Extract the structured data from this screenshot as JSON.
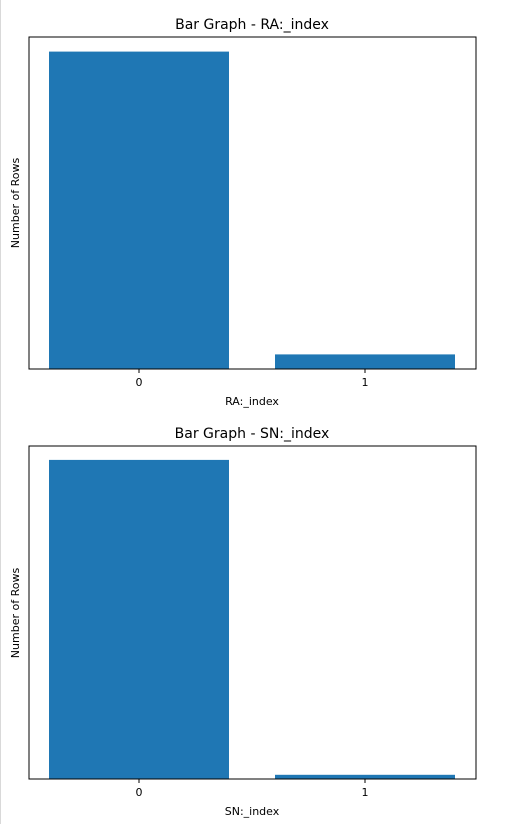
{
  "chart_data": [
    {
      "type": "bar",
      "title": "Bar Graph - RA:_index",
      "xlabel": "RA:_index",
      "ylabel": "Number of Rows",
      "categories": [
        "0",
        "1"
      ],
      "values": [
        0.956,
        0.044
      ],
      "ylim": [
        0,
        1.0
      ],
      "yticks_shown": false,
      "grid": false,
      "bar_color": "#1f77b4"
    },
    {
      "type": "bar",
      "title": "Bar Graph - SN:_index",
      "xlabel": "SN:_index",
      "ylabel": "Number of Rows",
      "categories": [
        "0",
        "1"
      ],
      "values": [
        0.987,
        0.013
      ],
      "ylim": [
        0,
        1.03
      ],
      "yticks_shown": false,
      "grid": false,
      "bar_color": "#1f77b4"
    }
  ]
}
